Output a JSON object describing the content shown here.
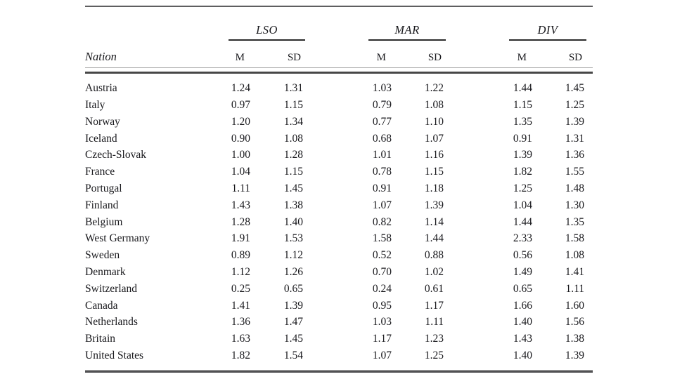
{
  "table": {
    "nation_header": "Nation",
    "groups": [
      {
        "label": "LSO"
      },
      {
        "label": "MAR"
      },
      {
        "label": "DIV"
      }
    ],
    "sub_headers": {
      "m": "M",
      "sd": "SD"
    },
    "rows": [
      {
        "nation": "Austria",
        "lso_m": "1.24",
        "lso_sd": "1.31",
        "mar_m": "1.03",
        "mar_sd": "1.22",
        "div_m": "1.44",
        "div_sd": "1.45"
      },
      {
        "nation": "Italy",
        "lso_m": "0.97",
        "lso_sd": "1.15",
        "mar_m": "0.79",
        "mar_sd": "1.08",
        "div_m": "1.15",
        "div_sd": "1.25"
      },
      {
        "nation": "Norway",
        "lso_m": "1.20",
        "lso_sd": "1.34",
        "mar_m": "0.77",
        "mar_sd": "1.10",
        "div_m": "1.35",
        "div_sd": "1.39"
      },
      {
        "nation": "Iceland",
        "lso_m": "0.90",
        "lso_sd": "1.08",
        "mar_m": "0.68",
        "mar_sd": "1.07",
        "div_m": "0.91",
        "div_sd": "1.31"
      },
      {
        "nation": "Czech-Slovak",
        "lso_m": "1.00",
        "lso_sd": "1.28",
        "mar_m": "1.01",
        "mar_sd": "1.16",
        "div_m": "1.39",
        "div_sd": "1.36"
      },
      {
        "nation": "France",
        "lso_m": "1.04",
        "lso_sd": "1.15",
        "mar_m": "0.78",
        "mar_sd": "1.15",
        "div_m": "1.82",
        "div_sd": "1.55"
      },
      {
        "nation": "Portugal",
        "lso_m": "1.11",
        "lso_sd": "1.45",
        "mar_m": "0.91",
        "mar_sd": "1.18",
        "div_m": "1.25",
        "div_sd": "1.48"
      },
      {
        "nation": "Finland",
        "lso_m": "1.43",
        "lso_sd": "1.38",
        "mar_m": "1.07",
        "mar_sd": "1.39",
        "div_m": "1.04",
        "div_sd": "1.30"
      },
      {
        "nation": "Belgium",
        "lso_m": "1.28",
        "lso_sd": "1.40",
        "mar_m": "0.82",
        "mar_sd": "1.14",
        "div_m": "1.44",
        "div_sd": "1.35"
      },
      {
        "nation": "West Germany",
        "lso_m": "1.91",
        "lso_sd": "1.53",
        "mar_m": "1.58",
        "mar_sd": "1.44",
        "div_m": "2.33",
        "div_sd": "1.58"
      },
      {
        "nation": "Sweden",
        "lso_m": "0.89",
        "lso_sd": "1.12",
        "mar_m": "0.52",
        "mar_sd": "0.88",
        "div_m": "0.56",
        "div_sd": "1.08"
      },
      {
        "nation": "Denmark",
        "lso_m": "1.12",
        "lso_sd": "1.26",
        "mar_m": "0.70",
        "mar_sd": "1.02",
        "div_m": "1.49",
        "div_sd": "1.41"
      },
      {
        "nation": "Switzerland",
        "lso_m": "0.25",
        "lso_sd": "0.65",
        "mar_m": "0.24",
        "mar_sd": "0.61",
        "div_m": "0.65",
        "div_sd": "1.11"
      },
      {
        "nation": "Canada",
        "lso_m": "1.41",
        "lso_sd": "1.39",
        "mar_m": "0.95",
        "mar_sd": "1.17",
        "div_m": "1.66",
        "div_sd": "1.60"
      },
      {
        "nation": "Netherlands",
        "lso_m": "1.36",
        "lso_sd": "1.47",
        "mar_m": "1.03",
        "mar_sd": "1.11",
        "div_m": "1.40",
        "div_sd": "1.56"
      },
      {
        "nation": "Britain",
        "lso_m": "1.63",
        "lso_sd": "1.45",
        "mar_m": "1.17",
        "mar_sd": "1.23",
        "div_m": "1.43",
        "div_sd": "1.38"
      },
      {
        "nation": "United States",
        "lso_m": "1.82",
        "lso_sd": "1.54",
        "mar_m": "1.07",
        "mar_sd": "1.25",
        "div_m": "1.40",
        "div_sd": "1.39"
      }
    ],
    "colors": {
      "rule_dark": "#525254",
      "rule_light": "#a9a9a9",
      "text": "#18181c"
    }
  }
}
